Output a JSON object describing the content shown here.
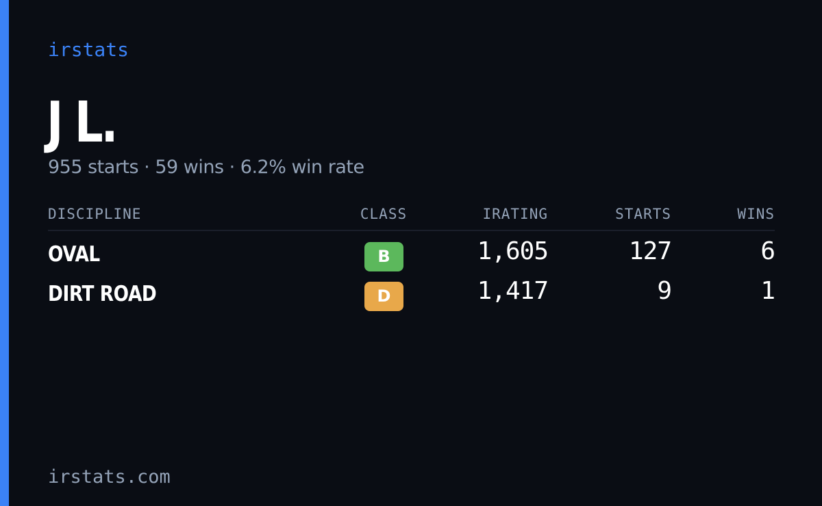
{
  "brand": "irstats",
  "driver": {
    "name": "J L.",
    "summary": "955 starts · 59 wins · 6.2% win rate"
  },
  "table": {
    "headers": {
      "discipline": "DISCIPLINE",
      "class": "CLASS",
      "irating": "IRATING",
      "starts": "STARTS",
      "wins": "WINS"
    },
    "rows": [
      {
        "discipline": "OVAL",
        "class": "B",
        "class_color": "#5cb85c",
        "irating": "1,605",
        "starts": "127",
        "wins": "6"
      },
      {
        "discipline": "DIRT ROAD",
        "class": "D",
        "class_color": "#e8a84a",
        "irating": "1,417",
        "starts": "9",
        "wins": "1"
      }
    ]
  },
  "footer": {
    "url": "irstats.com"
  },
  "colors": {
    "accent": "#3b82f6",
    "background": "#0a0d14",
    "muted_text": "#94a3b8"
  }
}
